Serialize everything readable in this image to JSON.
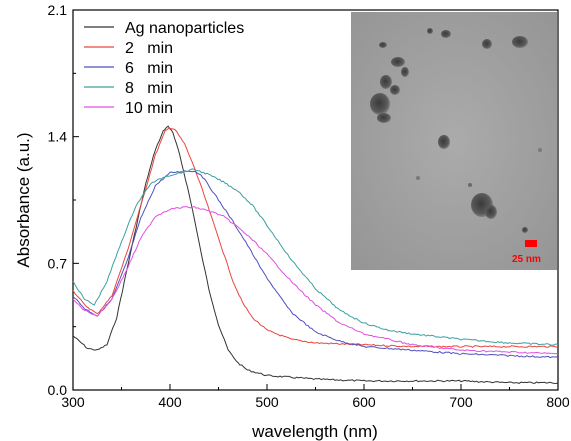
{
  "chart_data": {
    "type": "line",
    "xlabel": "wavelength (nm)",
    "ylabel": "Absorbance (a.u.)",
    "xlim": [
      300,
      800
    ],
    "ylim": [
      0.0,
      2.1
    ],
    "xticks": [
      "300",
      "400",
      "500",
      "600",
      "700",
      "800"
    ],
    "yticks": [
      "0.0",
      "0.7",
      "1.4",
      "2.1"
    ],
    "legend_position": "top-left",
    "grid": false,
    "series": [
      {
        "name": "Ag nanoparticles",
        "color": "#333333",
        "x": [
          300,
          315,
          325,
          335,
          345,
          355,
          365,
          375,
          385,
          393,
          398,
          403,
          410,
          418,
          425,
          432,
          440,
          450,
          460,
          470,
          480,
          500,
          525,
          550,
          600,
          650,
          700,
          750,
          800
        ],
        "y": [
          0.3,
          0.23,
          0.22,
          0.25,
          0.4,
          0.65,
          0.9,
          1.14,
          1.33,
          1.43,
          1.46,
          1.42,
          1.3,
          1.12,
          0.95,
          0.76,
          0.56,
          0.36,
          0.22,
          0.15,
          0.11,
          0.08,
          0.07,
          0.06,
          0.05,
          0.05,
          0.05,
          0.04,
          0.04
        ]
      },
      {
        "name": "2   min",
        "color": "#e8463c",
        "x": [
          300,
          312,
          325,
          340,
          355,
          370,
          385,
          395,
          400,
          405,
          415,
          425,
          435,
          445,
          455,
          465,
          475,
          485,
          500,
          525,
          550,
          600,
          650,
          700,
          750,
          800
        ],
        "y": [
          0.55,
          0.47,
          0.42,
          0.52,
          0.75,
          1.02,
          1.3,
          1.43,
          1.45,
          1.44,
          1.36,
          1.23,
          1.08,
          0.92,
          0.76,
          0.6,
          0.48,
          0.4,
          0.33,
          0.28,
          0.26,
          0.25,
          0.24,
          0.24,
          0.24,
          0.24
        ]
      },
      {
        "name": "6   min",
        "color": "#4f4fbf",
        "x": [
          300,
          312,
          325,
          340,
          355,
          370,
          385,
          400,
          415,
          425,
          432,
          440,
          450,
          465,
          480,
          495,
          510,
          525,
          550,
          575,
          600,
          650,
          700,
          750,
          800
        ],
        "y": [
          0.52,
          0.45,
          0.41,
          0.5,
          0.7,
          0.95,
          1.13,
          1.2,
          1.21,
          1.21,
          1.19,
          1.13,
          1.05,
          0.93,
          0.8,
          0.66,
          0.54,
          0.43,
          0.32,
          0.27,
          0.24,
          0.22,
          0.2,
          0.19,
          0.18
        ]
      },
      {
        "name": "8   min",
        "color": "#3aa0a0",
        "x": [
          300,
          312,
          322,
          335,
          350,
          365,
          380,
          395,
          410,
          425,
          440,
          455,
          470,
          485,
          500,
          525,
          550,
          575,
          600,
          625,
          650,
          700,
          750,
          800
        ],
        "y": [
          0.6,
          0.5,
          0.47,
          0.6,
          0.82,
          1.02,
          1.14,
          1.18,
          1.2,
          1.22,
          1.19,
          1.15,
          1.1,
          1.02,
          0.91,
          0.72,
          0.56,
          0.44,
          0.37,
          0.33,
          0.31,
          0.28,
          0.26,
          0.25
        ]
      },
      {
        "name": "10 min",
        "color": "#e050e0",
        "x": [
          300,
          312,
          325,
          340,
          355,
          370,
          385,
          400,
          415,
          425,
          440,
          455,
          470,
          485,
          500,
          525,
          550,
          575,
          600,
          650,
          700,
          750,
          800
        ],
        "y": [
          0.5,
          0.44,
          0.41,
          0.5,
          0.66,
          0.84,
          0.96,
          1.0,
          1.01,
          1.01,
          0.99,
          0.96,
          0.9,
          0.83,
          0.75,
          0.6,
          0.47,
          0.37,
          0.31,
          0.25,
          0.22,
          0.21,
          0.2
        ]
      }
    ]
  },
  "inset": {
    "scale_label": "25 nm",
    "background_color": "#a8a8a8",
    "scale_color": "#ff0000"
  }
}
